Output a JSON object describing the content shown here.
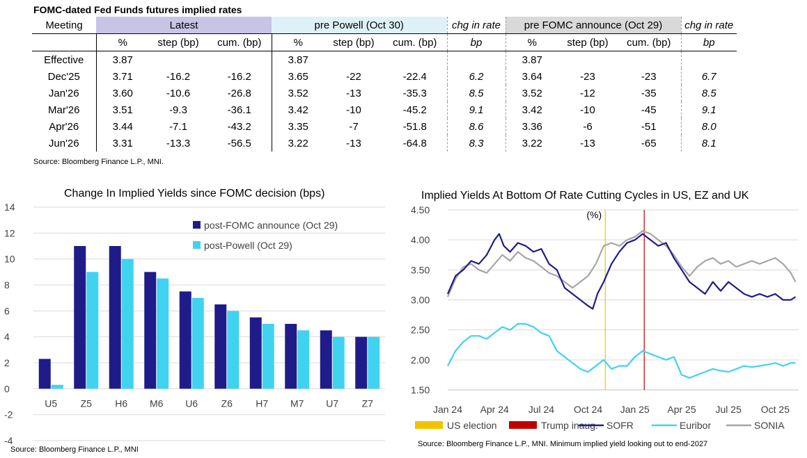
{
  "table": {
    "title": "FOMC-dated Fed Funds futures implied rates",
    "meeting_label": "Meeting",
    "group_latest": "Latest",
    "group_powell": "pre Powell (Oct 30)",
    "group_chg": "chg in rate",
    "group_fomc": "pre FOMC announce (Oct 29)",
    "sub_pct": "%",
    "sub_step": "step (bp)",
    "sub_cum": "cum. (bp)",
    "sub_bp": "bp",
    "rows": [
      {
        "m": "Effective",
        "l_pct": "3.87",
        "l_step": "",
        "l_cum": "",
        "p_pct": "3.87",
        "p_step": "",
        "p_cum": "",
        "p_chg": "",
        "f_pct": "3.87",
        "f_step": "",
        "f_cum": "",
        "f_chg": ""
      },
      {
        "m": "Dec'25",
        "l_pct": "3.71",
        "l_step": "-16.2",
        "l_cum": "-16.2",
        "p_pct": "3.65",
        "p_step": "-22",
        "p_cum": "-22.4",
        "p_chg": "6.2",
        "f_pct": "3.64",
        "f_step": "-23",
        "f_cum": "-23",
        "f_chg": "6.7"
      },
      {
        "m": "Jan'26",
        "l_pct": "3.60",
        "l_step": "-10.6",
        "l_cum": "-26.8",
        "p_pct": "3.52",
        "p_step": "-13",
        "p_cum": "-35.3",
        "p_chg": "8.5",
        "f_pct": "3.52",
        "f_step": "-12",
        "f_cum": "-35",
        "f_chg": "8.5"
      },
      {
        "m": "Mar'26",
        "l_pct": "3.51",
        "l_step": "-9.3",
        "l_cum": "-36.1",
        "p_pct": "3.42",
        "p_step": "-10",
        "p_cum": "-45.2",
        "p_chg": "9.1",
        "f_pct": "3.42",
        "f_step": "-10",
        "f_cum": "-45",
        "f_chg": "9.1"
      },
      {
        "m": "Apr'26",
        "l_pct": "3.44",
        "l_step": "-7.1",
        "l_cum": "-43.2",
        "p_pct": "3.35",
        "p_step": "-7",
        "p_cum": "-51.8",
        "p_chg": "8.6",
        "f_pct": "3.36",
        "f_step": "-6",
        "f_cum": "-51",
        "f_chg": "8.0"
      },
      {
        "m": "Jun'26",
        "l_pct": "3.31",
        "l_step": "-13.3",
        "l_cum": "-56.5",
        "p_pct": "3.22",
        "p_step": "-13",
        "p_cum": "-64.8",
        "p_chg": "8.3",
        "f_pct": "3.22",
        "f_step": "-13",
        "f_cum": "-65",
        "f_chg": "8.1"
      }
    ],
    "source": "Source: Bloomberg Finance L.P., MNI."
  },
  "chart_data": [
    {
      "type": "bar",
      "title": "Change In Implied Yields since FOMC decision (bps)",
      "categories": [
        "U5",
        "Z5",
        "H6",
        "M6",
        "U6",
        "Z6",
        "H7",
        "M7",
        "U7",
        "Z7"
      ],
      "series": [
        {
          "name": "post-FOMC announce (Oct 29)",
          "color": "#1f1c8a",
          "values": [
            2.3,
            11.0,
            11.0,
            9.0,
            7.5,
            6.5,
            5.5,
            5.0,
            4.5,
            4.0
          ]
        },
        {
          "name": "post-Powell (Oct 29)",
          "color": "#3fd3f0",
          "values": [
            0.3,
            9.0,
            10.0,
            8.5,
            7.0,
            6.0,
            5.0,
            4.5,
            4.0,
            4.0
          ]
        }
      ],
      "ylim": [
        -4,
        14
      ],
      "yticks": [
        "14",
        "12",
        "10",
        "8",
        "6",
        "4",
        "2",
        "0",
        "-2",
        "-4"
      ],
      "legend_position": "top-right",
      "source": "Source: Bloomberg Finance L.P., MNI"
    },
    {
      "type": "line",
      "title": "Implied Yields At Bottom Of Rate Cutting Cycles in US, EZ and UK",
      "ylabel": "(%)",
      "ylim": [
        1.5,
        4.5
      ],
      "yticks": [
        "4.50",
        "4.00",
        "3.50",
        "3.00",
        "2.50",
        "2.00",
        "1.50"
      ],
      "xlim": [
        0,
        22.5
      ],
      "x_units": "months since Jan 24",
      "xticks": [
        {
          "x": 0,
          "label": "Jan 24"
        },
        {
          "x": 3,
          "label": "Apr 24"
        },
        {
          "x": 6,
          "label": "Jul 24"
        },
        {
          "x": 9,
          "label": "Oct 24"
        },
        {
          "x": 12,
          "label": "Jan 25"
        },
        {
          "x": 15,
          "label": "Apr 25"
        },
        {
          "x": 18,
          "label": "Jul 25"
        },
        {
          "x": 21,
          "label": "Oct 25"
        }
      ],
      "vlines": [
        {
          "name": "US election",
          "x": 10.1,
          "color": "#f2c200"
        },
        {
          "name": "Trump inaug.",
          "x": 12.6,
          "color": "#c00000"
        }
      ],
      "series": [
        {
          "name": "SOFR",
          "color": "#1f1c8a",
          "x": [
            0,
            0.5,
            1,
            1.5,
            2,
            2.5,
            3,
            3.3,
            3.6,
            4,
            4.5,
            5,
            5.5,
            6,
            6.5,
            7,
            7.5,
            8,
            8.5,
            9,
            9.3,
            9.6,
            10,
            10.5,
            11,
            11.5,
            12,
            12.5,
            13,
            13.5,
            14,
            14.5,
            15,
            15.5,
            16,
            16.5,
            17,
            17.5,
            18,
            18.5,
            19,
            19.5,
            20,
            20.5,
            21,
            21.5,
            22,
            22.3
          ],
          "y": [
            3.1,
            3.4,
            3.5,
            3.65,
            3.6,
            3.75,
            4.0,
            4.1,
            3.9,
            3.8,
            3.95,
            3.9,
            3.8,
            3.85,
            3.6,
            3.5,
            3.2,
            3.1,
            3.0,
            2.9,
            2.85,
            3.1,
            3.3,
            3.6,
            3.8,
            3.95,
            4.0,
            4.1,
            4.0,
            3.9,
            3.95,
            3.7,
            3.5,
            3.3,
            3.2,
            3.1,
            3.3,
            3.15,
            3.3,
            3.2,
            3.1,
            3.05,
            3.1,
            3.05,
            3.1,
            3.0,
            3.0,
            3.05
          ]
        },
        {
          "name": "Euribor",
          "color": "#3fd3f0",
          "x": [
            0,
            0.5,
            1,
            1.5,
            2,
            2.5,
            3,
            3.5,
            4,
            4.5,
            5,
            5.5,
            6,
            6.5,
            7,
            7.5,
            8,
            8.5,
            9,
            9.5,
            10,
            10.5,
            11,
            11.5,
            12,
            12.5,
            13,
            13.5,
            14,
            14.5,
            15,
            15.5,
            16,
            16.5,
            17,
            17.5,
            18,
            18.5,
            19,
            19.5,
            20,
            20.5,
            21,
            21.5,
            22,
            22.3
          ],
          "y": [
            1.9,
            2.15,
            2.3,
            2.4,
            2.4,
            2.35,
            2.45,
            2.55,
            2.5,
            2.6,
            2.6,
            2.55,
            2.45,
            2.4,
            2.15,
            2.05,
            1.95,
            1.85,
            1.8,
            1.9,
            2.0,
            1.85,
            1.9,
            1.9,
            2.05,
            2.15,
            2.1,
            2.05,
            2.0,
            2.05,
            1.75,
            1.7,
            1.75,
            1.8,
            1.85,
            1.82,
            1.8,
            1.85,
            1.9,
            1.88,
            1.9,
            1.92,
            1.95,
            1.9,
            1.95,
            1.95
          ]
        },
        {
          "name": "SONIA",
          "color": "#a6a6a6",
          "x": [
            0,
            0.5,
            1,
            1.5,
            2,
            2.5,
            3,
            3.5,
            4,
            4.5,
            5,
            5.5,
            6,
            6.5,
            7,
            7.5,
            8,
            8.5,
            9,
            9.5,
            10,
            10.5,
            11,
            11.5,
            12,
            12.5,
            13,
            13.5,
            14,
            14.5,
            15,
            15.5,
            16,
            16.5,
            17,
            17.5,
            18,
            18.5,
            19,
            19.5,
            20,
            20.5,
            21,
            21.5,
            22,
            22.3
          ],
          "y": [
            3.05,
            3.35,
            3.55,
            3.6,
            3.5,
            3.45,
            3.6,
            3.75,
            3.65,
            3.8,
            3.7,
            3.65,
            3.55,
            3.45,
            3.4,
            3.3,
            3.2,
            3.3,
            3.4,
            3.6,
            3.9,
            3.95,
            3.9,
            4.0,
            4.05,
            4.15,
            4.1,
            4.0,
            3.9,
            3.75,
            3.55,
            3.4,
            3.55,
            3.65,
            3.7,
            3.6,
            3.65,
            3.55,
            3.6,
            3.65,
            3.6,
            3.65,
            3.7,
            3.6,
            3.45,
            3.3
          ]
        }
      ],
      "source": "Source: Bloomberg Finance L.P., MNI. Minimum implied yield looking out to end-2027"
    }
  ]
}
